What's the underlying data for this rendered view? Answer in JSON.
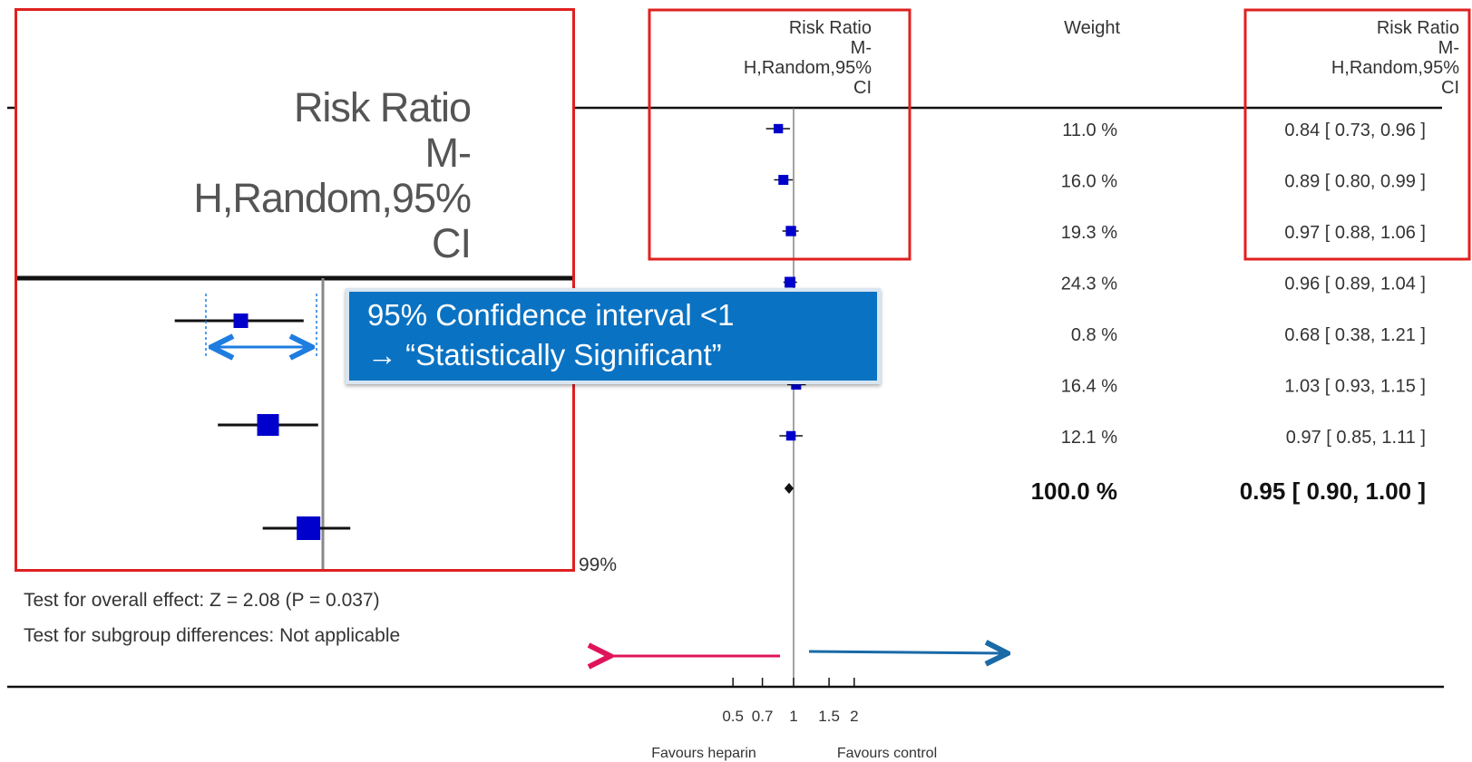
{
  "columns": {
    "risk_ratio_header": [
      "Risk Ratio",
      "M-",
      "H,Random,95%",
      "CI"
    ],
    "weight_header": "Weight",
    "ci_header": [
      "Risk Ratio",
      "M-",
      "H,Random,95%",
      "CI"
    ]
  },
  "chart_data": {
    "type": "forest",
    "x_scale": "log",
    "reference_line": 1,
    "xticks": [
      "0.5",
      "0.7",
      "1",
      "1.5",
      "2"
    ],
    "xtick_values": [
      0.5,
      0.7,
      1,
      1.5,
      2
    ],
    "xlabel_left": "Favours heparin",
    "xlabel_right": "Favours control",
    "studies": [
      {
        "rr": 0.84,
        "lo": 0.73,
        "hi": 0.96,
        "weight": "11.0 %",
        "ci_text": "0.84 [ 0.73, 0.96 ]"
      },
      {
        "rr": 0.89,
        "lo": 0.8,
        "hi": 0.99,
        "weight": "16.0 %",
        "ci_text": "0.89 [ 0.80, 0.99 ]"
      },
      {
        "rr": 0.97,
        "lo": 0.88,
        "hi": 1.06,
        "weight": "19.3 %",
        "ci_text": "0.97 [ 0.88, 1.06 ]"
      },
      {
        "rr": 0.96,
        "lo": 0.89,
        "hi": 1.04,
        "weight": "24.3 %",
        "ci_text": "0.96 [ 0.89, 1.04 ]"
      },
      {
        "rr": 0.68,
        "lo": 0.38,
        "hi": 1.21,
        "weight": "0.8 %",
        "ci_text": "0.68 [ 0.38, 1.21 ]"
      },
      {
        "rr": 1.03,
        "lo": 0.93,
        "hi": 1.15,
        "weight": "16.4 %",
        "ci_text": "1.03 [ 0.93, 1.15 ]"
      },
      {
        "rr": 0.97,
        "lo": 0.85,
        "hi": 1.11,
        "weight": "12.1 %",
        "ci_text": "0.97 [ 0.85, 1.11 ]"
      }
    ],
    "total": {
      "rr": 0.95,
      "lo": 0.9,
      "hi": 1.0,
      "weight": "100.0 %",
      "ci_text": "0.95 [ 0.90, 1.00 ]"
    }
  },
  "footer": {
    "heterogeneity_fragment": "99%",
    "overall_effect": "Test for overall effect: Z = 2.08 (P = 0.037)",
    "subgroup": "Test for subgroup differences: Not applicable"
  },
  "callout": {
    "line1": "95% Confidence interval <1",
    "line2": "→ “Statistically Significant”"
  },
  "colors": {
    "highlight_box": "#e02020",
    "marker": "#0000cc",
    "callout_bg": "#0a72c2",
    "arrow_left": "#e0145a",
    "arrow_right": "#1a6aa8",
    "ci_arrow": "#1e7de0"
  }
}
